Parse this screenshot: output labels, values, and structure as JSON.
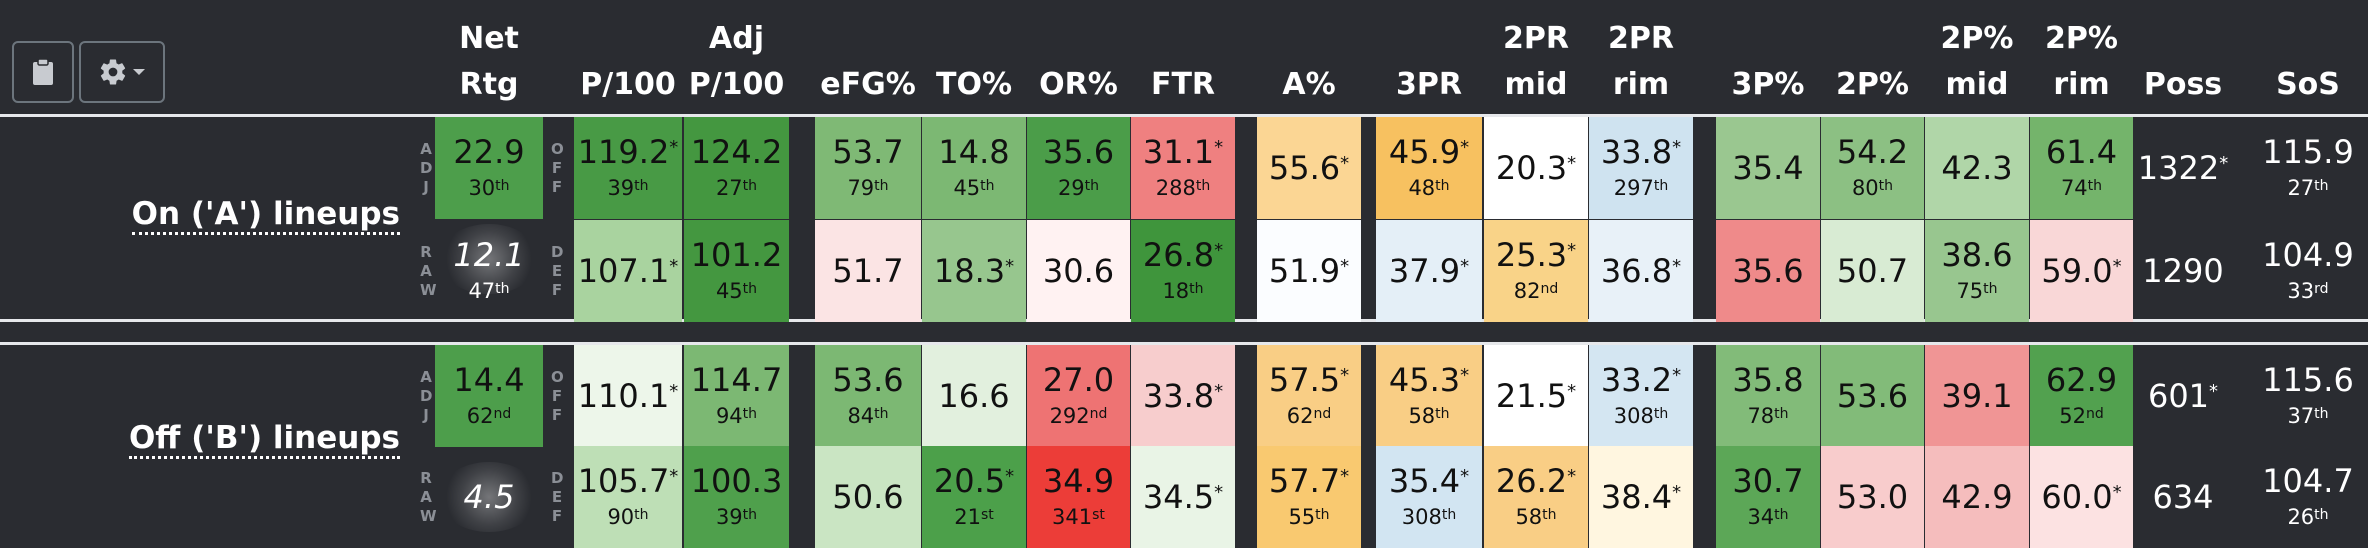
{
  "toolbar": {
    "clipboard_icon": "clipboard-icon",
    "settings_icon": "gear-icon",
    "dropdown_icon": "caret-down-icon"
  },
  "headers": {
    "netrtg": [
      "Net",
      "Rtg"
    ],
    "p100": [
      "",
      "P/100"
    ],
    "adjp100": [
      "Adj",
      "P/100"
    ],
    "efg": [
      "",
      "eFG%"
    ],
    "to": [
      "",
      "TO%"
    ],
    "or": [
      "",
      "OR%"
    ],
    "ftr": [
      "",
      "FTR"
    ],
    "a": [
      "",
      "A%"
    ],
    "3pr": [
      "",
      "3PR"
    ],
    "2prmid": [
      "2PR",
      "mid"
    ],
    "2prrim": [
      "2PR",
      "rim"
    ],
    "3p": [
      "",
      "3P%"
    ],
    "2p": [
      "",
      "2P%"
    ],
    "2pmid": [
      "2P%",
      "mid"
    ],
    "2prim": [
      "2P%",
      "rim"
    ],
    "poss": [
      "",
      "Poss"
    ],
    "sos": [
      "",
      "SoS"
    ]
  },
  "side_labels": {
    "adj": "ADJ",
    "raw": "RAW",
    "off": "OFF",
    "def": "DEF"
  },
  "groups": [
    {
      "label": "On ('A') lineups",
      "rows": [
        {
          "netrtg": {
            "v": "22.9",
            "r": "30",
            "s": "th"
          },
          "p100": {
            "v": "119.2",
            "star": "*",
            "r": "39",
            "s": "th"
          },
          "adjp100": {
            "v": "124.2",
            "r": "27",
            "s": "th"
          },
          "efg": {
            "v": "53.7",
            "r": "79",
            "s": "th"
          },
          "to": {
            "v": "14.8",
            "r": "45",
            "s": "th"
          },
          "or": {
            "v": "35.6",
            "r": "29",
            "s": "th"
          },
          "ftr": {
            "v": "31.1",
            "star": "*",
            "r": "288",
            "s": "th"
          },
          "a": {
            "v": "55.6",
            "star": "*"
          },
          "3pr": {
            "v": "45.9",
            "star": "*",
            "r": "48",
            "s": "th"
          },
          "2prmid": {
            "v": "20.3",
            "star": "*"
          },
          "2prrim": {
            "v": "33.8",
            "star": "*",
            "r": "297",
            "s": "th"
          },
          "3p": {
            "v": "35.4"
          },
          "2p": {
            "v": "54.2",
            "r": "80",
            "s": "th"
          },
          "2pmid": {
            "v": "42.3"
          },
          "2prim": {
            "v": "61.4",
            "r": "74",
            "s": "th"
          },
          "poss": {
            "v": "1322",
            "star": "*"
          },
          "sos": {
            "v": "115.9",
            "r": "27",
            "s": "th"
          }
        },
        {
          "netrtg": {
            "v": "12.1",
            "r": "47",
            "s": "th"
          },
          "p100": {
            "v": "107.1",
            "star": "*"
          },
          "adjp100": {
            "v": "101.2",
            "r": "45",
            "s": "th"
          },
          "efg": {
            "v": "51.7"
          },
          "to": {
            "v": "18.3",
            "star": "*"
          },
          "or": {
            "v": "30.6"
          },
          "ftr": {
            "v": "26.8",
            "star": "*",
            "r": "18",
            "s": "th"
          },
          "a": {
            "v": "51.9",
            "star": "*"
          },
          "3pr": {
            "v": "37.9",
            "star": "*"
          },
          "2prmid": {
            "v": "25.3",
            "star": "*",
            "r": "82",
            "s": "nd"
          },
          "2prrim": {
            "v": "36.8",
            "star": "*"
          },
          "3p": {
            "v": "35.6"
          },
          "2p": {
            "v": "50.7"
          },
          "2pmid": {
            "v": "38.6",
            "r": "75",
            "s": "th"
          },
          "2prim": {
            "v": "59.0",
            "star": "*"
          },
          "poss": {
            "v": "1290"
          },
          "sos": {
            "v": "104.9",
            "r": "33",
            "s": "rd"
          }
        }
      ]
    },
    {
      "label": "Off ('B') lineups",
      "rows": [
        {
          "netrtg": {
            "v": "14.4",
            "r": "62",
            "s": "nd"
          },
          "p100": {
            "v": "110.1",
            "star": "*"
          },
          "adjp100": {
            "v": "114.7",
            "r": "94",
            "s": "th"
          },
          "efg": {
            "v": "53.6",
            "r": "84",
            "s": "th"
          },
          "to": {
            "v": "16.6"
          },
          "or": {
            "v": "27.0",
            "r": "292",
            "s": "nd"
          },
          "ftr": {
            "v": "33.8",
            "star": "*"
          },
          "a": {
            "v": "57.5",
            "star": "*",
            "r": "62",
            "s": "nd"
          },
          "3pr": {
            "v": "45.3",
            "star": "*",
            "r": "58",
            "s": "th"
          },
          "2prmid": {
            "v": "21.5",
            "star": "*"
          },
          "2prrim": {
            "v": "33.2",
            "star": "*",
            "r": "308",
            "s": "th"
          },
          "3p": {
            "v": "35.8",
            "r": "78",
            "s": "th"
          },
          "2p": {
            "v": "53.6"
          },
          "2pmid": {
            "v": "39.1"
          },
          "2prim": {
            "v": "62.9",
            "r": "52",
            "s": "nd"
          },
          "poss": {
            "v": "601",
            "star": "*"
          },
          "sos": {
            "v": "115.6",
            "r": "37",
            "s": "th"
          }
        },
        {
          "netrtg": {
            "v": "4.5"
          },
          "p100": {
            "v": "105.7",
            "star": "*",
            "r": "90",
            "s": "th"
          },
          "adjp100": {
            "v": "100.3",
            "r": "39",
            "s": "th"
          },
          "efg": {
            "v": "50.6"
          },
          "to": {
            "v": "20.5",
            "star": "*",
            "r": "21",
            "s": "st"
          },
          "or": {
            "v": "34.9",
            "r": "341",
            "s": "st"
          },
          "ftr": {
            "v": "34.5",
            "star": "*"
          },
          "a": {
            "v": "57.7",
            "star": "*",
            "r": "55",
            "s": "th"
          },
          "3pr": {
            "v": "35.4",
            "star": "*",
            "r": "308",
            "s": "th"
          },
          "2prmid": {
            "v": "26.2",
            "star": "*",
            "r": "58",
            "s": "th"
          },
          "2prrim": {
            "v": "38.4",
            "star": "*"
          },
          "3p": {
            "v": "30.7",
            "r": "34",
            "s": "th"
          },
          "2p": {
            "v": "53.0"
          },
          "2pmid": {
            "v": "42.9"
          },
          "2prim": {
            "v": "60.0",
            "star": "*"
          },
          "poss": {
            "v": "634"
          },
          "sos": {
            "v": "104.7",
            "r": "26",
            "s": "th"
          }
        }
      ]
    }
  ],
  "colors": {
    "rows": [
      {
        "netrtg": "#4d9e4b",
        "p100": "#489a45",
        "adjp100": "#449740",
        "efg": "#7fb975",
        "to": "#7cb873",
        "or": "#4b9d49",
        "ftr": "#ef8080",
        "a": "#fbd694",
        "3pr": "#f7c160",
        "2prmid": "#ffffff",
        "2prrim": "#cfe3f0",
        "3p": "#9ac790",
        "2p": "#8cc083",
        "2pmid": "#b0d6a8",
        "2prim": "#74b46b"
      },
      {
        "netrtg": "dark",
        "p100": "#a9d39f",
        "adjp100": "#449740",
        "efg": "#fbe4e4",
        "to": "#97c68e",
        "or": "#fff2f2",
        "ftr": "#3f953c",
        "a": "#fbfdff",
        "3pr": "#e4eff7",
        "2prmid": "#f9d388",
        "2prrim": "#e8f1f8",
        "3p": "#ef8a8a",
        "2p": "#d8ebd3",
        "2pmid": "#98c68f",
        "2prim": "#f9d7d7"
      },
      {
        "netrtg": "#4d9e4b",
        "p100": "#edf6ea",
        "adjp100": "#7cb873",
        "efg": "#7cb873",
        "to": "#e2f0de",
        "or": "#ee7373",
        "ftr": "#f7cdcd",
        "a": "#f9ce85",
        "3pr": "#f9ce85",
        "2prmid": "#ffffff",
        "2prrim": "#d4e6f2",
        "3p": "#82bb79",
        "2p": "#82bb79",
        "2pmid": "#f09595",
        "2prim": "#52a14f"
      },
      {
        "netrtg": "dark",
        "p100": "#bedfb6",
        "adjp100": "#4fa04c",
        "efg": "#cae5c3",
        "to": "#4ca04a",
        "or": "#ec3d38",
        "ftr": "#e9f4e6",
        "a": "#f9c970",
        "3pr": "#d2e5f2",
        "2prmid": "#f9ce85",
        "2prrim": "#fff6e0",
        "3p": "#5ca757",
        "2p": "#f8cccc",
        "2pmid": "#f5bdbd",
        "2prim": "#fce2e2"
      }
    ]
  }
}
